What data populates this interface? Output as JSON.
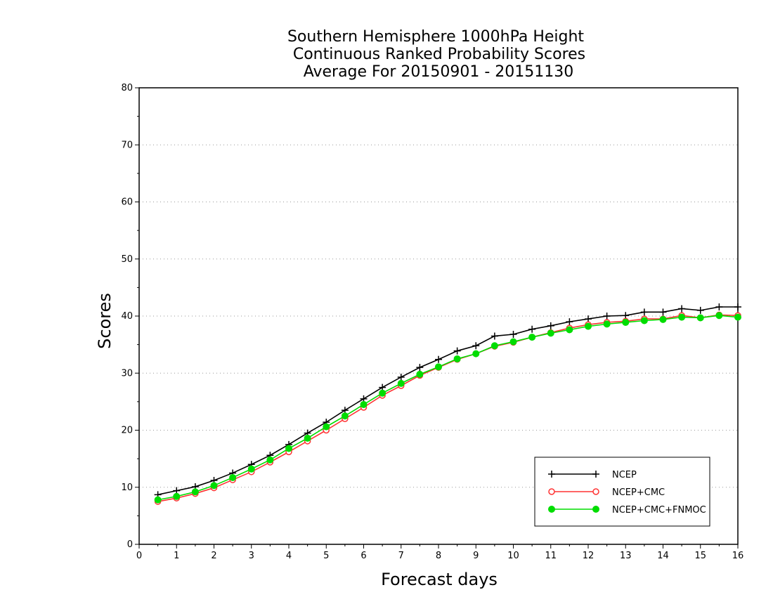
{
  "chart_data": {
    "type": "line",
    "title": [
      "Southern Hemisphere 1000hPa Height",
      "Continuous Ranked Probability Scores",
      "Average For 20150901 - 20151130"
    ],
    "xlabel": "Forecast days",
    "ylabel": "Scores",
    "xlim": [
      0,
      16
    ],
    "ylim": [
      0,
      80
    ],
    "xticks": [
      0,
      1,
      2,
      3,
      4,
      5,
      6,
      7,
      8,
      9,
      10,
      11,
      12,
      13,
      14,
      15,
      16
    ],
    "yticks": [
      0,
      10,
      20,
      30,
      40,
      50,
      60,
      70,
      80
    ],
    "grid": "horizontal-dotted",
    "legend_position": "bottom-right",
    "x": [
      0.5,
      1,
      1.5,
      2,
      2.5,
      3,
      3.5,
      4,
      4.5,
      5,
      5.5,
      6,
      6.5,
      7,
      7.5,
      8,
      8.5,
      9,
      9.5,
      10,
      10.5,
      11,
      11.5,
      12,
      12.5,
      13,
      13.5,
      14,
      14.5,
      15,
      15.5,
      16
    ],
    "series": [
      {
        "name": "NCEP",
        "color": "#000000",
        "marker": "plus",
        "values": [
          8.7,
          9.4,
          10.1,
          11.2,
          12.5,
          14.0,
          15.6,
          17.5,
          19.5,
          21.4,
          23.5,
          25.5,
          27.5,
          29.3,
          31.0,
          32.4,
          33.9,
          34.8,
          36.5,
          36.8,
          37.7,
          38.3,
          39.0,
          39.5,
          40.0,
          40.1,
          40.7,
          40.7,
          41.3,
          41.0,
          41.6,
          41.6
        ]
      },
      {
        "name": "NCEP+CMC",
        "color": "#ff3333",
        "marker": "open-circle",
        "values": [
          7.5,
          8.1,
          8.9,
          9.9,
          11.3,
          12.7,
          14.4,
          16.2,
          18.1,
          20.0,
          22.0,
          24.0,
          26.1,
          27.8,
          29.6,
          31.0,
          32.4,
          33.4,
          34.7,
          35.4,
          36.3,
          37.1,
          37.9,
          38.5,
          38.9,
          39.1,
          39.5,
          39.5,
          40.1,
          39.7,
          40.2,
          40.1
        ]
      },
      {
        "name": "NCEP+CMC+FNMOC",
        "color": "#00dd00",
        "marker": "filled-circle",
        "values": [
          7.8,
          8.4,
          9.2,
          10.3,
          11.7,
          13.2,
          14.8,
          16.8,
          18.6,
          20.6,
          22.5,
          24.5,
          26.5,
          28.2,
          29.8,
          31.1,
          32.5,
          33.4,
          34.8,
          35.5,
          36.3,
          37.0,
          37.6,
          38.2,
          38.6,
          38.9,
          39.2,
          39.4,
          39.8,
          39.7,
          40.1,
          39.8
        ]
      }
    ]
  }
}
